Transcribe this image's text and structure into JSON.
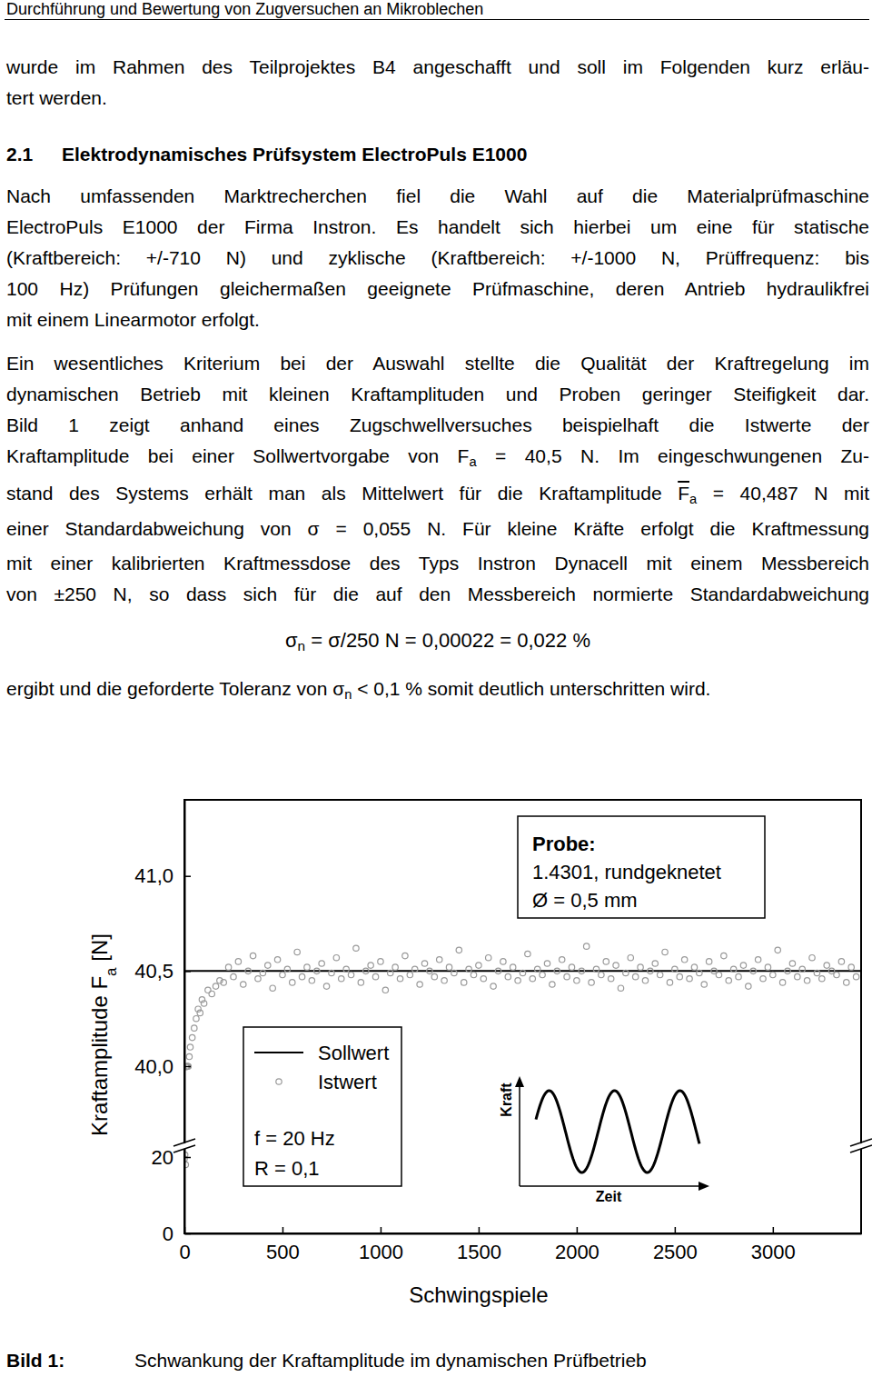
{
  "header": "Durchführung und Bewertung von Zugversuchen an Mikroblechen",
  "blocks": [
    {
      "type": "paragraph",
      "lines": [
        [
          "wurde im Rahmen des Teilprojektes B4 angeschafft und soll im Folgenden kurz erläu-"
        ],
        [
          "tert werden."
        ]
      ]
    },
    {
      "type": "heading",
      "number": "2.1",
      "text": "Elektrodynamisches Prüfsystem ElectroPuls E1000"
    },
    {
      "type": "paragraph",
      "lines": [
        [
          "Nach umfassenden Marktrecherchen fiel die Wahl auf die Materialprüfmaschine"
        ],
        [
          "ElectroPuls E1000 der Firma Instron. Es handelt sich hierbei um eine für statische"
        ],
        [
          "(Kraftbereich: +/-710 N) und zyklische (Kraftbereich: +/-1000 N, Prüffrequenz: bis"
        ],
        [
          "100 Hz) Prüfungen gleichermaßen geeignete Prüfmaschine, deren Antrieb hydraulikfrei"
        ],
        [
          "mit einem Linearmotor erfolgt."
        ]
      ]
    },
    {
      "type": "paragraph",
      "lines": [
        [
          "Ein wesentliches Kriterium bei der Auswahl stellte die Qualität der Kraftregelung im"
        ],
        [
          "dynamischen Betrieb mit kleinen Kraftamplituden und Proben geringer Steifigkeit dar."
        ],
        [
          "Bild 1 zeigt anhand eines Zugschwellversuches beispielhaft die Istwerte der"
        ],
        [
          "Kraftamplitude bei einer Sollwertvorgabe von F",
          {
            "text": "a",
            "format": "sub"
          },
          " = 40,5 N. Im eingeschwungenen Zu-"
        ],
        [
          "stand des Systems erhält man als Mittelwert für die Kraftamplitude ",
          {
            "text": "F",
            "format": "overline"
          },
          {
            "text": "a",
            "format": "sub"
          },
          " = 40,487 N mit"
        ],
        [
          "einer Standardabweichung von σ = 0,055 N. Für kleine Kräfte erfolgt die Kraftmessung"
        ],
        [
          "mit einer kalibrierten Kraftmessdose des Typs Instron Dynacell mit einem Messbereich"
        ],
        [
          "von ±250 N, so dass sich für die auf den Messbereich normierte Standardabweichung"
        ]
      ]
    },
    {
      "type": "formula",
      "lines": [
        [
          "σ",
          {
            "text": "n",
            "format": "sub"
          },
          " = σ/250 N = 0,00022 = 0,022 %"
        ]
      ]
    },
    {
      "type": "paragraph",
      "lines": [
        [
          "ergibt und die geforderte Toleranz von σ",
          {
            "text": "n",
            "format": "sub"
          },
          " < 0,1 % somit deutlich unterschritten wird."
        ]
      ]
    }
  ],
  "chart_data": {
    "type": "scatter",
    "x_label": "Schwingspiele",
    "y_label": [
      "Kraftamplitude F",
      {
        "text": "a",
        "format": "sub"
      },
      " [N]"
    ],
    "xlim": [
      0,
      3450
    ],
    "xticks": [
      0,
      500,
      1000,
      1500,
      2000,
      2500,
      3000
    ],
    "ylim": [
      0,
      41.4
    ],
    "yticks": [
      0,
      20,
      {
        "value": 40,
        "label": "40,0"
      },
      {
        "value": 40.5,
        "label": "40,5"
      },
      {
        "value": 41,
        "label": "41,0"
      }
    ],
    "y_break": [
      20,
      40
    ],
    "grid": false,
    "legend": "lower left",
    "annotations": [
      "Probe:",
      "1.4301, rundgeknetet",
      "Ø = 0,5 mm",
      "f = 20 Hz",
      "R = 0,1"
    ],
    "inset": {
      "y_label": "Kraft",
      "x_label": "Zeit"
    },
    "series": [
      {
        "name": "Sollwert",
        "type": "line",
        "color": "#000000",
        "line_style": "solid",
        "x": [
          0,
          3450
        ],
        "values": [
          40.5,
          40.5
        ]
      },
      {
        "name": "Istwert",
        "type": "scatter",
        "color": "#9a9a9a",
        "marker": "circle-open",
        "x": [
          0,
          3,
          6,
          9,
          12,
          15,
          20,
          25,
          30,
          40,
          50,
          60,
          70,
          80,
          90,
          100,
          120,
          140,
          160,
          180,
          200,
          225,
          250,
          275,
          300,
          325,
          350,
          375,
          400,
          425,
          450,
          475,
          500,
          525,
          550,
          575,
          600,
          625,
          650,
          675,
          700,
          725,
          750,
          775,
          800,
          825,
          850,
          875,
          900,
          925,
          950,
          975,
          1000,
          1025,
          1050,
          1075,
          1100,
          1125,
          1150,
          1175,
          1200,
          1225,
          1250,
          1275,
          1300,
          1325,
          1350,
          1375,
          1400,
          1425,
          1450,
          1475,
          1500,
          1525,
          1550,
          1575,
          1600,
          1625,
          1650,
          1675,
          1700,
          1725,
          1750,
          1775,
          1800,
          1825,
          1850,
          1875,
          1900,
          1925,
          1950,
          1975,
          2000,
          2025,
          2050,
          2075,
          2100,
          2125,
          2150,
          2175,
          2200,
          2225,
          2250,
          2275,
          2300,
          2325,
          2350,
          2375,
          2400,
          2425,
          2450,
          2475,
          2500,
          2525,
          2550,
          2575,
          2600,
          2625,
          2650,
          2675,
          2700,
          2725,
          2750,
          2775,
          2800,
          2825,
          2850,
          2875,
          2900,
          2925,
          2950,
          2975,
          3000,
          3025,
          3050,
          3075,
          3100,
          3125,
          3150,
          3175,
          3200,
          3225,
          3250,
          3275,
          3300,
          3325,
          3350,
          3375,
          3400,
          3425
        ],
        "values": [
          19.5,
          20.5,
          18,
          39.85,
          39.9,
          40.0,
          39.95,
          40.05,
          40.1,
          40.15,
          40.2,
          40.25,
          40.3,
          40.28,
          40.35,
          40.33,
          40.4,
          40.38,
          40.42,
          40.45,
          40.44,
          40.52,
          40.47,
          40.55,
          40.43,
          40.5,
          40.58,
          40.46,
          40.49,
          40.53,
          40.41,
          40.56,
          40.48,
          40.51,
          40.44,
          40.6,
          40.47,
          40.52,
          40.45,
          40.5,
          40.54,
          40.42,
          40.49,
          40.57,
          40.46,
          40.51,
          40.48,
          40.62,
          40.44,
          40.5,
          40.53,
          40.47,
          40.55,
          40.4,
          40.49,
          40.52,
          40.46,
          40.58,
          40.48,
          40.51,
          40.43,
          40.54,
          40.5,
          40.47,
          40.56,
          40.45,
          40.52,
          40.49,
          40.61,
          40.44,
          40.51,
          40.48,
          40.53,
          40.46,
          40.57,
          40.42,
          40.5,
          40.55,
          40.47,
          40.52,
          40.45,
          40.49,
          40.59,
          40.46,
          40.51,
          40.48,
          40.54,
          40.43,
          40.5,
          40.56,
          40.47,
          40.52,
          40.45,
          40.5,
          40.63,
          40.44,
          40.51,
          40.48,
          40.55,
          40.46,
          40.53,
          40.41,
          40.49,
          40.57,
          40.47,
          40.52,
          40.45,
          40.5,
          40.54,
          40.48,
          40.6,
          40.44,
          40.51,
          40.47,
          40.56,
          40.46,
          40.52,
          40.49,
          40.43,
          40.55,
          40.5,
          40.48,
          40.58,
          40.45,
          40.51,
          40.47,
          40.53,
          40.42,
          40.5,
          40.56,
          40.46,
          40.52,
          40.48,
          40.61,
          40.44,
          40.5,
          40.54,
          40.47,
          40.51,
          40.45,
          40.57,
          40.49,
          40.46,
          40.53,
          40.5,
          40.48,
          40.55,
          40.44,
          40.52,
          40.47
        ]
      }
    ]
  },
  "caption": {
    "label": "Bild 1:",
    "text": "Schwankung der Kraftamplitude im dynamischen Prüfbetrieb"
  }
}
